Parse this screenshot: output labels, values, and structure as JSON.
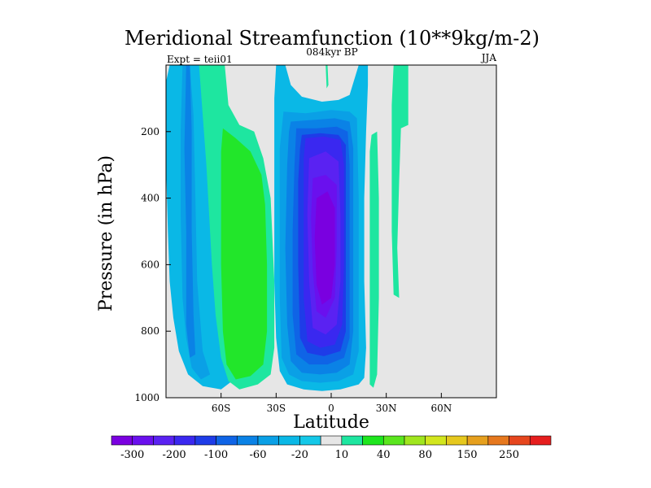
{
  "chart_data": {
    "type": "heatmap",
    "title": "Meridional Streamfunction (10**9kg/m-2)",
    "subtitle_left": "Expt = teii01",
    "subtitle_center": "084kyr BP",
    "subtitle_right": "JJA",
    "xlabel": "Latitude",
    "ylabel": "Pressure (in hPa)",
    "xlim": [
      -90,
      90
    ],
    "ylim": [
      1000,
      0
    ],
    "x_ticks": [
      {
        "value": -60,
        "label": "60S"
      },
      {
        "value": -30,
        "label": "30S"
      },
      {
        "value": 0,
        "label": "0"
      },
      {
        "value": 30,
        "label": "30N"
      },
      {
        "value": 60,
        "label": "60N"
      }
    ],
    "y_ticks": [
      {
        "value": 200,
        "label": "200"
      },
      {
        "value": 400,
        "label": "400"
      },
      {
        "value": 600,
        "label": "600"
      },
      {
        "value": 800,
        "label": "800"
      },
      {
        "value": 1000,
        "label": "1000"
      }
    ],
    "background_color": "#e6e6e6",
    "colorbar": {
      "levels": [
        -300,
        -250,
        -200,
        -150,
        -100,
        -80,
        -60,
        -40,
        -20,
        -10,
        10,
        20,
        40,
        60,
        80,
        100,
        150,
        200,
        250,
        300
      ],
      "colors": [
        "#7a00e0",
        "#6a10ee",
        "#5a22f2",
        "#3a28f0",
        "#1e3ce8",
        "#0f64e6",
        "#0a82e6",
        "#0aa0e6",
        "#0ab8e6",
        "#14c8e8",
        "#e6e6e6",
        "#1ee6a0",
        "#1ee61e",
        "#5ae61e",
        "#a0e61e",
        "#d2e61e",
        "#e6c81e",
        "#e6a01e",
        "#e6781e",
        "#e6461e",
        "#e61e1e"
      ],
      "labels": [
        {
          "level": -300,
          "label": "-300"
        },
        {
          "level": -200,
          "label": "-200"
        },
        {
          "level": -100,
          "label": "-100"
        },
        {
          "level": -60,
          "label": "-60"
        },
        {
          "level": -20,
          "label": "-20"
        },
        {
          "level": 10,
          "label": "10"
        },
        {
          "level": 40,
          "label": "40"
        },
        {
          "level": 80,
          "label": "80"
        },
        {
          "level": 150,
          "label": "150"
        },
        {
          "level": 250,
          "label": "250"
        }
      ]
    },
    "regions": [
      {
        "name": "southern-blue-cell",
        "value": -20,
        "color": "#0ab8e6",
        "outline": [
          [
            -88,
            0
          ],
          [
            -76,
            0
          ],
          [
            -72,
            0
          ],
          [
            -68,
            60
          ],
          [
            -66,
            180
          ],
          [
            -64,
            400
          ],
          [
            -62,
            700
          ],
          [
            -58,
            880
          ],
          [
            -54,
            950
          ],
          [
            -60,
            975
          ],
          [
            -70,
            965
          ],
          [
            -78,
            930
          ],
          [
            -83,
            860
          ],
          [
            -86,
            760
          ],
          [
            -88,
            650
          ],
          [
            -89,
            500
          ],
          [
            -90,
            300
          ],
          [
            -90,
            50
          ]
        ]
      },
      {
        "name": "southern-blue-inner",
        "value": -40,
        "color": "#0aa0e6",
        "outline": [
          [
            -81,
            0
          ],
          [
            -77,
            0
          ],
          [
            -75,
            150
          ],
          [
            -74,
            400
          ],
          [
            -73,
            650
          ],
          [
            -70,
            860
          ],
          [
            -66,
            930
          ],
          [
            -71,
            945
          ],
          [
            -76,
            910
          ],
          [
            -79,
            820
          ],
          [
            -81,
            700
          ],
          [
            -82,
            450
          ],
          [
            -82,
            200
          ]
        ]
      },
      {
        "name": "southern-blue-core",
        "value": -60,
        "color": "#0a82e6",
        "outline": [
          [
            -79,
            0
          ],
          [
            -77,
            0
          ],
          [
            -76,
            200
          ],
          [
            -76,
            500
          ],
          [
            -75,
            750
          ],
          [
            -74,
            870
          ],
          [
            -77,
            880
          ],
          [
            -79,
            780
          ],
          [
            -79,
            500
          ],
          [
            -80,
            250
          ]
        ]
      },
      {
        "name": "southern-green-cell",
        "value": 10,
        "color": "#1ee6a0",
        "outline": [
          [
            -72,
            0
          ],
          [
            -58,
            0
          ],
          [
            -56,
            120
          ],
          [
            -50,
            180
          ],
          [
            -42,
            200
          ],
          [
            -37,
            280
          ],
          [
            -33,
            400
          ],
          [
            -31,
            650
          ],
          [
            -31,
            850
          ],
          [
            -33,
            930
          ],
          [
            -40,
            960
          ],
          [
            -50,
            975
          ],
          [
            -56,
            950
          ],
          [
            -60,
            880
          ],
          [
            -63,
            750
          ],
          [
            -65,
            600
          ],
          [
            -68,
            300
          ],
          [
            -70,
            150
          ]
        ]
      },
      {
        "name": "southern-green-core",
        "value": 20,
        "color": "#22e62a",
        "outline": [
          [
            -59,
            190
          ],
          [
            -52,
            220
          ],
          [
            -44,
            260
          ],
          [
            -38,
            330
          ],
          [
            -36,
            420
          ],
          [
            -35,
            600
          ],
          [
            -35,
            800
          ],
          [
            -37,
            900
          ],
          [
            -44,
            935
          ],
          [
            -52,
            945
          ],
          [
            -57,
            900
          ],
          [
            -59,
            800
          ],
          [
            -60,
            600
          ],
          [
            -60,
            400
          ],
          [
            -60,
            260
          ]
        ]
      },
      {
        "name": "hadley-cell-outer",
        "value": -20,
        "color": "#0ab8e6",
        "outline": [
          [
            -30,
            0
          ],
          [
            -25,
            0
          ],
          [
            -22,
            60
          ],
          [
            -16,
            95
          ],
          [
            -5,
            110
          ],
          [
            4,
            105
          ],
          [
            10,
            90
          ],
          [
            15,
            0
          ],
          [
            20,
            0
          ],
          [
            20,
            60
          ],
          [
            19,
            200
          ],
          [
            18,
            400
          ],
          [
            18,
            650
          ],
          [
            19,
            850
          ],
          [
            18,
            940
          ],
          [
            15,
            960
          ],
          [
            5,
            975
          ],
          [
            -5,
            980
          ],
          [
            -15,
            975
          ],
          [
            -24,
            960
          ],
          [
            -28,
            920
          ],
          [
            -30,
            820
          ],
          [
            -31,
            650
          ],
          [
            -31,
            450
          ],
          [
            -31,
            250
          ],
          [
            -31,
            100
          ]
        ]
      },
      {
        "name": "hadley-cell-1",
        "value": -40,
        "color": "#0aa0e6",
        "outline": [
          [
            -26,
            140
          ],
          [
            -14,
            145
          ],
          [
            0,
            135
          ],
          [
            10,
            140
          ],
          [
            14,
            160
          ],
          [
            15,
            400
          ],
          [
            15,
            700
          ],
          [
            15,
            860
          ],
          [
            12,
            930
          ],
          [
            4,
            950
          ],
          [
            -6,
            955
          ],
          [
            -16,
            950
          ],
          [
            -23,
            930
          ],
          [
            -27,
            880
          ],
          [
            -28,
            700
          ],
          [
            -28,
            450
          ],
          [
            -28,
            250
          ]
        ]
      },
      {
        "name": "hadley-cell-2",
        "value": -60,
        "color": "#0a82e6",
        "outline": [
          [
            -22,
            170
          ],
          [
            -10,
            165
          ],
          [
            2,
            160
          ],
          [
            10,
            170
          ],
          [
            12,
            250
          ],
          [
            12,
            500
          ],
          [
            12,
            800
          ],
          [
            10,
            900
          ],
          [
            3,
            925
          ],
          [
            -6,
            930
          ],
          [
            -16,
            925
          ],
          [
            -22,
            890
          ],
          [
            -24,
            780
          ],
          [
            -25,
            550
          ],
          [
            -24,
            300
          ],
          [
            -23,
            200
          ]
        ]
      },
      {
        "name": "hadley-cell-3",
        "value": -80,
        "color": "#0f64e6",
        "outline": [
          [
            -19,
            190
          ],
          [
            -8,
            190
          ],
          [
            3,
            185
          ],
          [
            9,
            200
          ],
          [
            10,
            300
          ],
          [
            10,
            550
          ],
          [
            10,
            820
          ],
          [
            7,
            880
          ],
          [
            -2,
            900
          ],
          [
            -12,
            900
          ],
          [
            -19,
            870
          ],
          [
            -21,
            750
          ],
          [
            -21,
            500
          ],
          [
            -20,
            300
          ]
        ]
      },
      {
        "name": "hadley-cell-4",
        "value": -100,
        "color": "#1e3ce8",
        "outline": [
          [
            -16,
            210
          ],
          [
            -6,
            205
          ],
          [
            4,
            210
          ],
          [
            8,
            240
          ],
          [
            8,
            550
          ],
          [
            8,
            800
          ],
          [
            5,
            860
          ],
          [
            -4,
            875
          ],
          [
            -13,
            865
          ],
          [
            -17,
            820
          ],
          [
            -18,
            600
          ],
          [
            -18,
            350
          ],
          [
            -17,
            250
          ]
        ]
      },
      {
        "name": "hadley-cell-5",
        "value": -150,
        "color": "#3a28f0",
        "outline": [
          [
            -14,
            220
          ],
          [
            -4,
            215
          ],
          [
            5,
            225
          ],
          [
            7,
            300
          ],
          [
            7,
            600
          ],
          [
            6,
            780
          ],
          [
            2,
            840
          ],
          [
            -6,
            850
          ],
          [
            -13,
            830
          ],
          [
            -15,
            700
          ],
          [
            -15,
            450
          ],
          [
            -15,
            280
          ]
        ]
      },
      {
        "name": "hadley-cell-6",
        "value": -200,
        "color": "#5a22f2",
        "outline": [
          [
            -12,
            280
          ],
          [
            -3,
            260
          ],
          [
            4,
            290
          ],
          [
            5,
            450
          ],
          [
            5,
            650
          ],
          [
            3,
            780
          ],
          [
            -3,
            810
          ],
          [
            -10,
            790
          ],
          [
            -12,
            650
          ],
          [
            -13,
            450
          ]
        ]
      },
      {
        "name": "hadley-cell-7",
        "value": -250,
        "color": "#6a10ee",
        "outline": [
          [
            -10,
            340
          ],
          [
            -3,
            330
          ],
          [
            3,
            360
          ],
          [
            3,
            550
          ],
          [
            2,
            700
          ],
          [
            -3,
            760
          ],
          [
            -8,
            740
          ],
          [
            -10,
            620
          ],
          [
            -11,
            460
          ]
        ]
      },
      {
        "name": "hadley-cell-8",
        "value": -300,
        "color": "#7a00e0",
        "outline": [
          [
            -8,
            400
          ],
          [
            -2,
            380
          ],
          [
            2,
            430
          ],
          [
            2,
            600
          ],
          [
            0,
            700
          ],
          [
            -5,
            720
          ],
          [
            -8,
            660
          ],
          [
            -9,
            520
          ]
        ]
      },
      {
        "name": "equator-green-streak",
        "value": 10,
        "color": "#1ee6a0",
        "outline": [
          [
            -3,
            0
          ],
          [
            -2,
            0
          ],
          [
            -1.5,
            60
          ],
          [
            -2.5,
            70
          ]
        ]
      },
      {
        "name": "northern-green-streak",
        "value": 10,
        "color": "#1ee6a0",
        "outline": [
          [
            22,
            210
          ],
          [
            25,
            200
          ],
          [
            26,
            400
          ],
          [
            26,
            700
          ],
          [
            25,
            930
          ],
          [
            23,
            970
          ],
          [
            21,
            960
          ],
          [
            21,
            700
          ],
          [
            21,
            450
          ],
          [
            21,
            260
          ]
        ]
      },
      {
        "name": "northern-green-band",
        "value": 10,
        "color": "#1ee6a0",
        "outline": [
          [
            34,
            0
          ],
          [
            42,
            0
          ],
          [
            42,
            180
          ],
          [
            38,
            190
          ],
          [
            37,
            350
          ],
          [
            36,
            550
          ],
          [
            37,
            700
          ],
          [
            34,
            690
          ],
          [
            33,
            500
          ],
          [
            33,
            250
          ],
          [
            33,
            120
          ]
        ]
      },
      {
        "name": "northern-green-tail",
        "value": 10,
        "color": "#1ee6a0",
        "outline": [
          [
            35,
            0
          ],
          [
            36,
            0
          ],
          [
            36,
            180
          ],
          [
            35,
            180
          ]
        ]
      }
    ]
  }
}
